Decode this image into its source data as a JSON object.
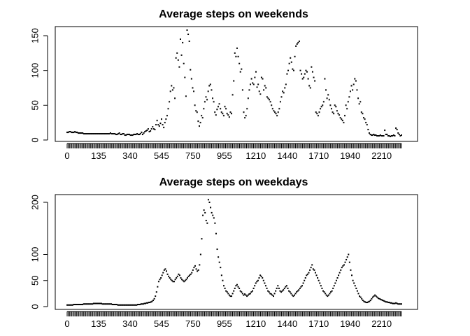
{
  "chart_data": [
    {
      "type": "scatter",
      "title": "Average steps on weekends",
      "xlabel": "",
      "ylabel": "",
      "x_tick_labels": [
        "0",
        "135",
        "340",
        "545",
        "750",
        "955",
        "1210",
        "1440",
        "1710",
        "1940",
        "2210"
      ],
      "y_ticks": [
        0,
        50,
        100,
        150
      ],
      "ylim": [
        0,
        160
      ],
      "grid": false,
      "x_category_count": 288,
      "series": [
        {
          "values": [
            11,
            11,
            12,
            12,
            11,
            11,
            11,
            12,
            11,
            11,
            10,
            10,
            10,
            10,
            10,
            9,
            9,
            9,
            9,
            9,
            9,
            9,
            9,
            9,
            9,
            9,
            9,
            9,
            9,
            9,
            9,
            9,
            9,
            9,
            9,
            9,
            9,
            9,
            9,
            10,
            9,
            9,
            9,
            9,
            8,
            8,
            9,
            10,
            8,
            8,
            9,
            9,
            7,
            7,
            8,
            8,
            8,
            7,
            7,
            7,
            8,
            8,
            8,
            9,
            8,
            8,
            9,
            11,
            8,
            10,
            12,
            13,
            14,
            16,
            12,
            13,
            16,
            19,
            16,
            15,
            22,
            28,
            22,
            20,
            24,
            30,
            22,
            18,
            25,
            30,
            35,
            45,
            55,
            70,
            78,
            72,
            75,
            60,
            118,
            125,
            115,
            105,
            145,
            122,
            140,
            110,
            90,
            63,
            158,
            152,
            142,
            101,
            88,
            75,
            70,
            50,
            42,
            40,
            27,
            20,
            25,
            35,
            32,
            45,
            55,
            62,
            58,
            70,
            78,
            80,
            72,
            60,
            55,
            40,
            36,
            44,
            48,
            52,
            45,
            40,
            38,
            35,
            48,
            45,
            38,
            36,
            33,
            40,
            38,
            65,
            85,
            125,
            120,
            132,
            120,
            110,
            98,
            102,
            72,
            40,
            32,
            35,
            45,
            60,
            72,
            80,
            88,
            82,
            80,
            90,
            98,
            76,
            80,
            70,
            66,
            90,
            88,
            72,
            78,
            75,
            62,
            60,
            58,
            55,
            50,
            45,
            42,
            40,
            38,
            35,
            40,
            45,
            55,
            62,
            70,
            68,
            75,
            80,
            95,
            100,
            110,
            118,
            112,
            102,
            100,
            120,
            135,
            138,
            140,
            142,
            100,
            95,
            88,
            90,
            95,
            100,
            98,
            88,
            78,
            75,
            105,
            98,
            90,
            85,
            40,
            38,
            35,
            40,
            45,
            48,
            50,
            55,
            88,
            72,
            60,
            65,
            58,
            50,
            45,
            40,
            38,
            50,
            48,
            42,
            38,
            36,
            32,
            30,
            28,
            25,
            35,
            50,
            45,
            55,
            62,
            70,
            78,
            72,
            80,
            88,
            85,
            72,
            60,
            52,
            55,
            40,
            38,
            32,
            30,
            25,
            22,
            15,
            10,
            8,
            7,
            7,
            8,
            7,
            7,
            6,
            6,
            6,
            7,
            6,
            6,
            6,
            14,
            8,
            8,
            6,
            6,
            5,
            6,
            6,
            7,
            6,
            17,
            15,
            10,
            8,
            6,
            7
          ]
        }
      ]
    },
    {
      "type": "scatter",
      "title": "Average steps on weekdays",
      "xlabel": "",
      "ylabel": "",
      "x_tick_labels": [
        "0",
        "135",
        "340",
        "545",
        "750",
        "955",
        "1210",
        "1440",
        "1710",
        "1940",
        "2210"
      ],
      "y_ticks": [
        0,
        50,
        100,
        200
      ],
      "ylim": [
        0,
        210
      ],
      "grid": false,
      "x_category_count": 288,
      "series": [
        {
          "values": [
            3,
            3,
            3,
            3,
            3,
            3,
            4,
            4,
            4,
            4,
            4,
            4,
            4,
            4,
            4,
            5,
            5,
            5,
            5,
            5,
            5,
            5,
            5,
            5,
            6,
            6,
            6,
            6,
            6,
            6,
            6,
            6,
            5,
            5,
            5,
            5,
            5,
            5,
            5,
            5,
            5,
            4,
            4,
            4,
            4,
            4,
            3,
            3,
            3,
            3,
            3,
            3,
            3,
            3,
            3,
            3,
            3,
            3,
            3,
            3,
            3,
            3,
            3,
            3,
            4,
            4,
            4,
            5,
            5,
            5,
            6,
            6,
            7,
            7,
            8,
            8,
            9,
            10,
            12,
            15,
            20,
            28,
            38,
            48,
            52,
            55,
            60,
            65,
            70,
            72,
            68,
            62,
            58,
            55,
            52,
            50,
            48,
            48,
            52,
            55,
            58,
            62,
            60,
            55,
            52,
            50,
            48,
            50,
            52,
            55,
            58,
            60,
            62,
            65,
            70,
            75,
            78,
            72,
            68,
            70,
            80,
            100,
            130,
            175,
            185,
            180,
            165,
            160,
            205,
            200,
            190,
            180,
            175,
            170,
            160,
            140,
            110,
            95,
            85,
            75,
            60,
            50,
            40,
            35,
            30,
            28,
            25,
            22,
            20,
            20,
            25,
            30,
            35,
            40,
            42,
            38,
            35,
            30,
            28,
            25,
            22,
            24,
            22,
            20,
            22,
            24,
            25,
            28,
            30,
            35,
            40,
            45,
            48,
            50,
            55,
            60,
            58,
            55,
            50,
            45,
            40,
            35,
            30,
            28,
            25,
            24,
            22,
            20,
            25,
            30,
            35,
            40,
            35,
            30,
            28,
            30,
            32,
            35,
            38,
            40,
            35,
            30,
            28,
            25,
            22,
            20,
            22,
            25,
            28,
            30,
            32,
            35,
            38,
            40,
            45,
            50,
            55,
            60,
            62,
            65,
            70,
            75,
            80,
            72,
            70,
            65,
            60,
            55,
            50,
            45,
            40,
            35,
            30,
            28,
            25,
            22,
            20,
            22,
            25,
            28,
            30,
            35,
            40,
            45,
            50,
            55,
            60,
            65,
            70,
            75,
            78,
            80,
            85,
            90,
            95,
            100,
            85,
            70,
            60,
            50,
            45,
            40,
            35,
            30,
            25,
            20,
            18,
            15,
            12,
            10,
            9,
            8,
            8,
            9,
            10,
            12,
            15,
            18,
            20,
            22,
            20,
            18,
            16,
            15,
            14,
            13,
            12,
            11,
            10,
            9,
            9,
            8,
            8,
            7,
            7,
            6,
            6,
            6,
            7,
            6,
            5,
            5,
            5,
            5
          ]
        }
      ]
    }
  ]
}
